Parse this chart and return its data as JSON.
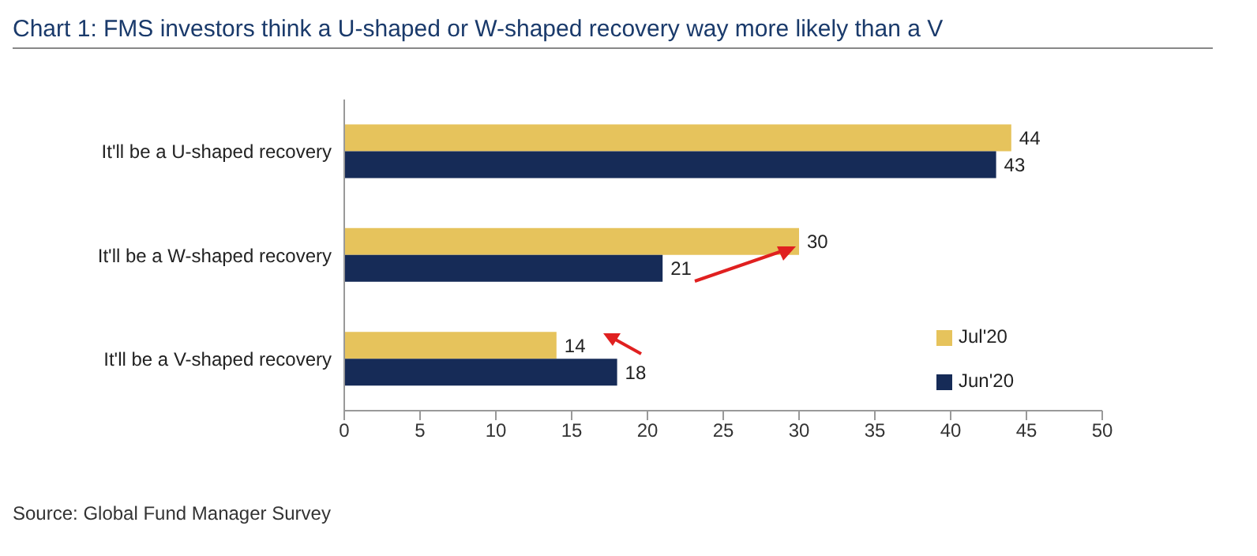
{
  "chart_data": {
    "type": "bar",
    "orientation": "horizontal",
    "title": "Chart 1: FMS investors think a U-shaped or W-shaped recovery way more likely than a V",
    "categories": [
      "It'll be a U-shaped recovery",
      "It'll be a W-shaped recovery",
      "It'll be a V-shaped recovery"
    ],
    "series": [
      {
        "name": "Jul'20",
        "color": "#e6c35c",
        "values": [
          44,
          30,
          14
        ]
      },
      {
        "name": "Jun'20",
        "color": "#162b57",
        "values": [
          43,
          21,
          18
        ]
      }
    ],
    "xlim": [
      0,
      50
    ],
    "xticks": [
      0,
      5,
      10,
      15,
      20,
      25,
      30,
      35,
      40,
      45,
      50
    ],
    "data_labels": true,
    "legend": "bottom right",
    "annotations": [
      "Source: Global Fund Manager Survey"
    ]
  }
}
